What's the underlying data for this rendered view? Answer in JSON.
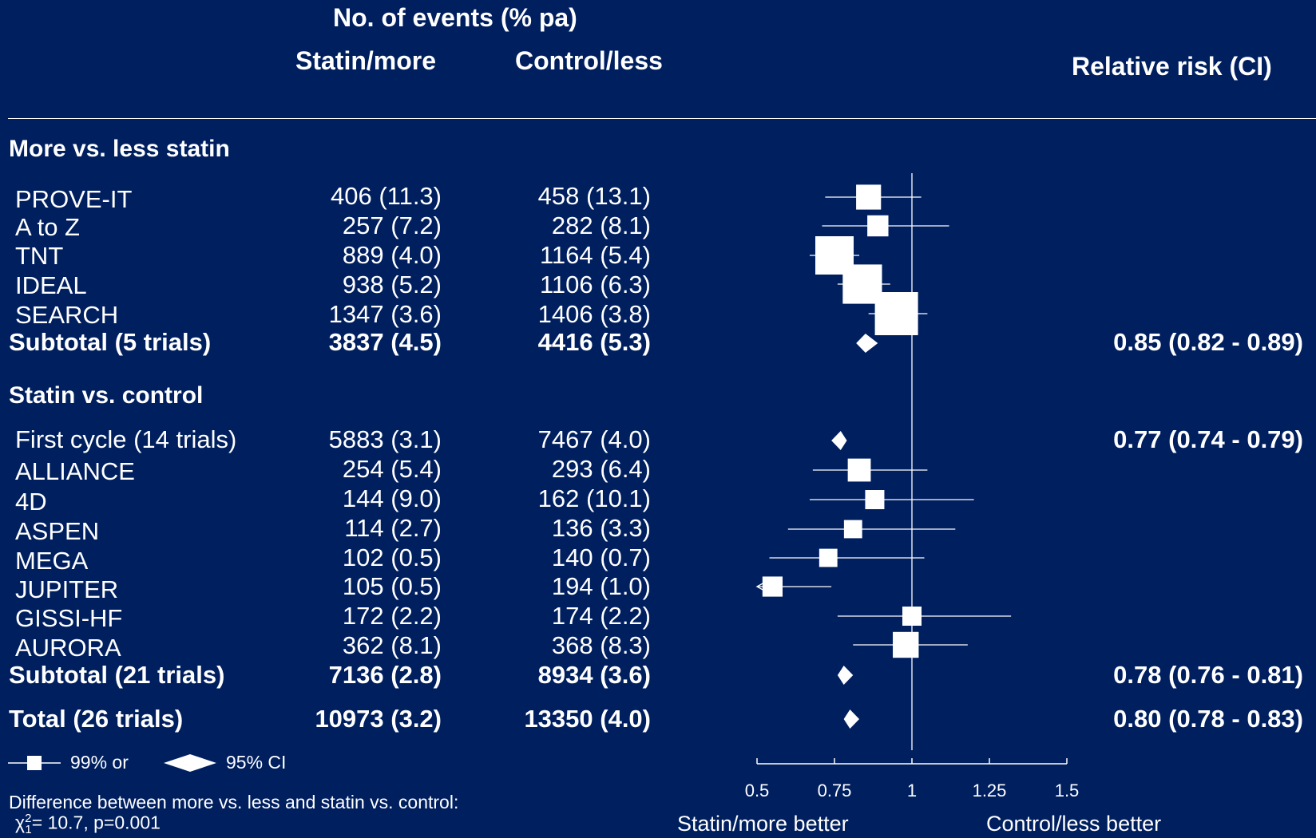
{
  "header": {
    "events_title": "No. of events (% pa)",
    "col_statin": "Statin/more",
    "col_control": "Control/less",
    "col_rr": "Relative risk (CI)"
  },
  "groups": [
    {
      "title": "More vs. less statin",
      "rows": [
        {
          "label": "PROVE-IT",
          "statin": "406 (11.3)",
          "control": "458 (13.1)"
        },
        {
          "label": "A to Z",
          "statin": "257 (7.2)",
          "control": "282 (8.1)"
        },
        {
          "label": "TNT",
          "statin": "889 (4.0)",
          "control": "1164 (5.4)"
        },
        {
          "label": "IDEAL",
          "statin": "938 (5.2)",
          "control": "1106 (6.3)"
        },
        {
          "label": "SEARCH",
          "statin": "1347 (3.6)",
          "control": "1406 (3.8)"
        }
      ],
      "subtotal": {
        "label": "Subtotal (5 trials)",
        "statin": "3837 (4.5)",
        "control": "4416 (5.3)",
        "rr": "0.85 (0.82 - 0.89)"
      }
    },
    {
      "title": "Statin vs. control",
      "rows": [
        {
          "label": "First cycle (14 trials)",
          "statin": "5883 (3.1)",
          "control": "7467 (4.0)",
          "rr": "0.77 (0.74 - 0.79)"
        },
        {
          "label": "ALLIANCE",
          "statin": "254 (5.4)",
          "control": "293 (6.4)"
        },
        {
          "label": "4D",
          "statin": "144 (9.0)",
          "control": "162 (10.1)"
        },
        {
          "label": "ASPEN",
          "statin": "114 (2.7)",
          "control": "136 (3.3)"
        },
        {
          "label": "MEGA",
          "statin": "102 (0.5)",
          "control": "140 (0.7)"
        },
        {
          "label": "JUPITER",
          "statin": "105 (0.5)",
          "control": "194 (1.0)"
        },
        {
          "label": "GISSI-HF",
          "statin": "172 (2.2)",
          "control": "174 (2.2)"
        },
        {
          "label": "AURORA",
          "statin": "362 (8.1)",
          "control": "368 (8.3)"
        }
      ],
      "subtotal": {
        "label": "Subtotal (21 trials)",
        "statin": "7136 (2.8)",
        "control": "8934 (3.6)",
        "rr": "0.78 (0.76 - 0.81)"
      }
    }
  ],
  "total": {
    "label": "Total (26 trials)",
    "statin": "10973 (3.2)",
    "control": "13350 (4.0)",
    "rr": "0.80 (0.78 - 0.83)"
  },
  "legend": {
    "square_label": "99% or",
    "diamond_label": "95% CI"
  },
  "footnote": {
    "line1": "Difference between more vs. less and statin vs. control:",
    "chi_symbol": "χ",
    "chi_sup": "2",
    "chi_sub": "1",
    "chi_rest": "= 10.7, p=0.001"
  },
  "axis": {
    "caption_left": "Statin/more better",
    "caption_right": "Control/less better"
  },
  "chart_data": {
    "type": "forest",
    "xlim": [
      0.5,
      1.5
    ],
    "xticks": [
      "0.5",
      "0.75",
      "1",
      "1.25",
      "1.5"
    ],
    "reference_line": 1,
    "studies": [
      {
        "name": "PROVE-IT",
        "rr": 0.86,
        "lo": 0.72,
        "hi": 1.03,
        "size": 0.32
      },
      {
        "name": "A to Z",
        "rr": 0.89,
        "lo": 0.71,
        "hi": 1.12,
        "size": 0.24
      },
      {
        "name": "TNT",
        "rr": 0.75,
        "lo": 0.67,
        "hi": 0.83,
        "size": 0.6
      },
      {
        "name": "IDEAL",
        "rr": 0.84,
        "lo": 0.76,
        "hi": 0.93,
        "size": 0.62
      },
      {
        "name": "SEARCH",
        "rr": 0.95,
        "lo": 0.86,
        "hi": 1.05,
        "size": 0.7
      },
      {
        "name": "ALLIANCE",
        "rr": 0.83,
        "lo": 0.68,
        "hi": 1.05,
        "size": 0.28
      },
      {
        "name": "4D",
        "rr": 0.88,
        "lo": 0.67,
        "hi": 1.2,
        "size": 0.2
      },
      {
        "name": "ASPEN",
        "rr": 0.81,
        "lo": 0.6,
        "hi": 1.14,
        "size": 0.18
      },
      {
        "name": "MEGA",
        "rr": 0.73,
        "lo": 0.54,
        "hi": 1.04,
        "size": 0.18
      },
      {
        "name": "JUPITER",
        "rr": 0.55,
        "lo": 0.5,
        "hi": 0.74,
        "size": 0.22,
        "arrow_left": true
      },
      {
        "name": "GISSI-HF",
        "rr": 1.0,
        "lo": 0.76,
        "hi": 1.32,
        "size": 0.2
      },
      {
        "name": "AURORA",
        "rr": 0.98,
        "lo": 0.81,
        "hi": 1.18,
        "size": 0.34
      }
    ],
    "diamonds": [
      {
        "name": "Subtotal (5 trials)",
        "rr": 0.85,
        "lo": 0.82,
        "hi": 0.89
      },
      {
        "name": "First cycle (14 trials)",
        "rr": 0.77,
        "lo": 0.74,
        "hi": 0.79
      },
      {
        "name": "Subtotal (21 trials)",
        "rr": 0.78,
        "lo": 0.76,
        "hi": 0.81
      },
      {
        "name": "Total (26 trials)",
        "rr": 0.8,
        "lo": 0.78,
        "hi": 0.83
      }
    ]
  }
}
